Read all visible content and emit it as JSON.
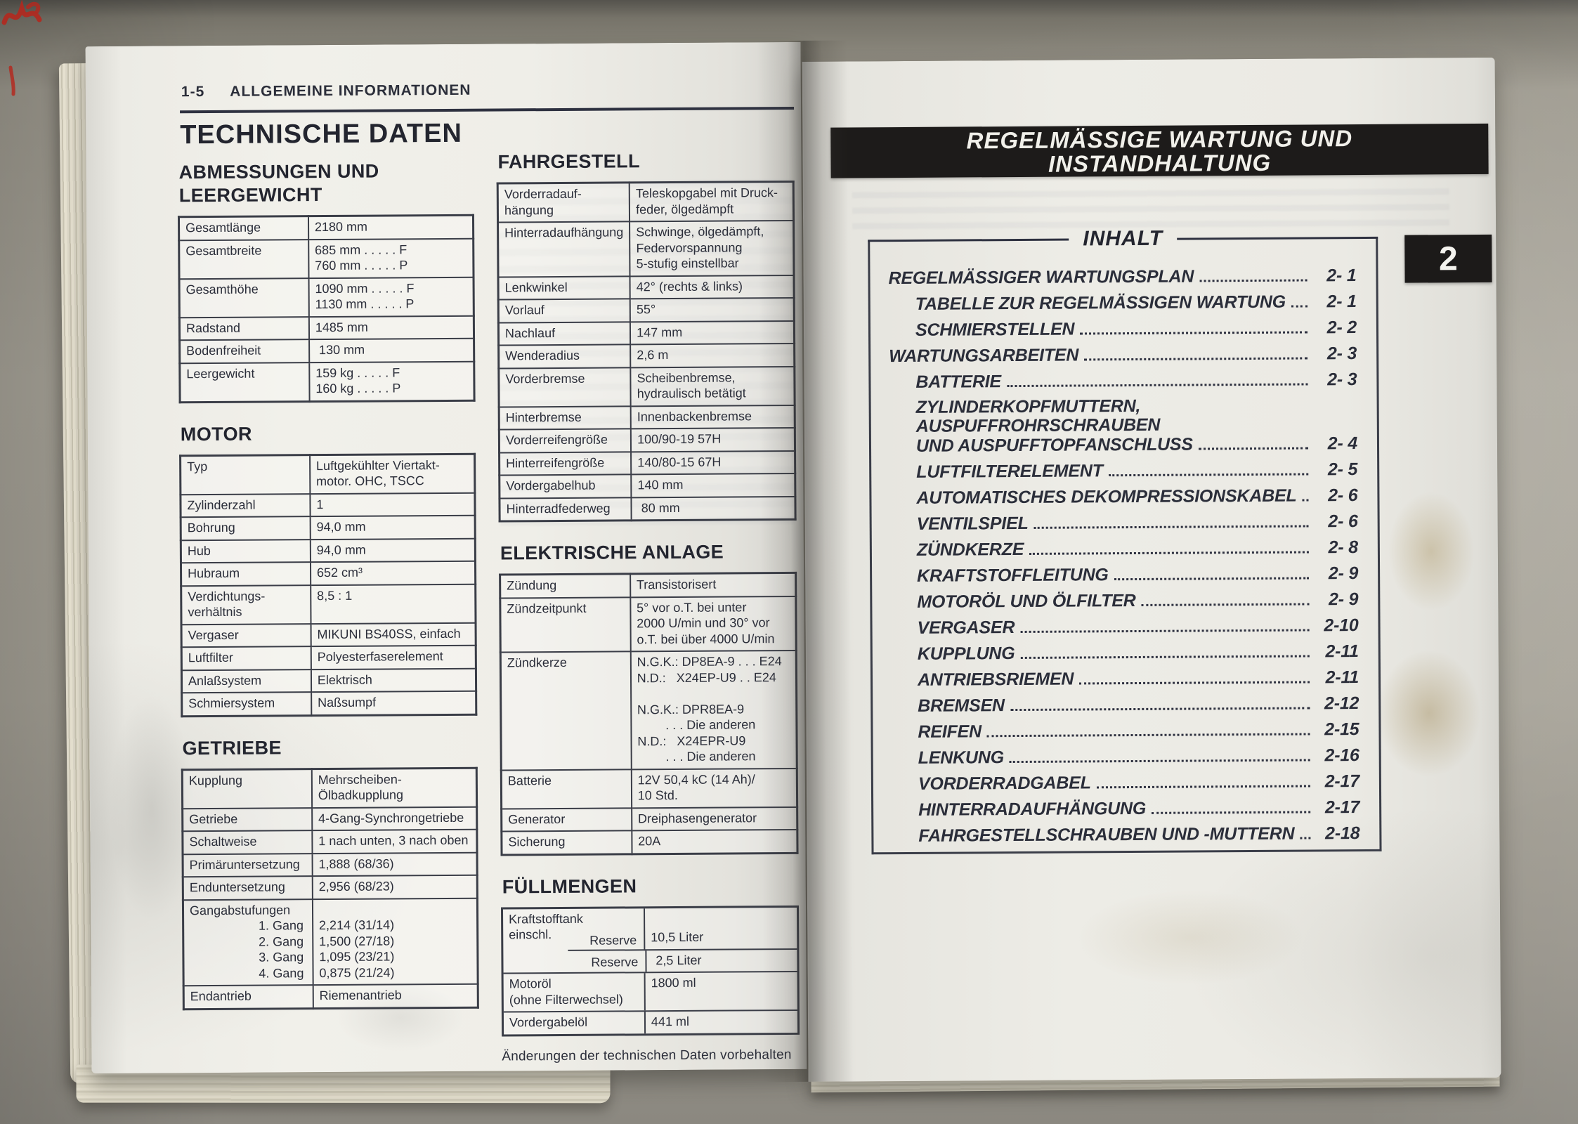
{
  "colors": {
    "ink": "#2b2e3a",
    "paper": "#edebe4",
    "banner_bg": "#1d1b1a",
    "desk": "#a7a398",
    "red_marks": "#b5271d",
    "stain": "#8c7032"
  },
  "left_page": {
    "page_ref": "1-5",
    "chapter": "ALLGEMEINE INFORMATIONEN",
    "title": "TECHNISCHE DATEN",
    "col1": [
      {
        "heading": "ABMESSUNGEN UND\nLEERGEWICHT",
        "rows": [
          {
            "label": "Gesamtlänge",
            "value": "2180 mm"
          },
          {
            "label": "Gesamtbreite",
            "value": "685 mm . . . . . F\n760 mm . . . . . P"
          },
          {
            "label": "Gesamthöhe",
            "value": "1090 mm . . . . . F\n1130 mm . . . . . P"
          },
          {
            "label": "Radstand",
            "value": "1485 mm"
          },
          {
            "label": "Bodenfreiheit",
            "value": " 130 mm"
          },
          {
            "label": "Leergewicht",
            "value": "159 kg . . . . . F\n160 kg . . . . . P"
          }
        ]
      },
      {
        "heading": "MOTOR",
        "rows": [
          {
            "label": "Typ",
            "value": "Luftgekühlter Viertakt-\nmotor. OHC, TSCC"
          },
          {
            "label": "Zylinderzahl",
            "value": "1"
          },
          {
            "label": "Bohrung",
            "value": "94,0 mm"
          },
          {
            "label": "Hub",
            "value": "94,0 mm"
          },
          {
            "label": "Hubraum",
            "value": "652 cm³"
          },
          {
            "label": "Verdichtungs-\nverhältnis",
            "value": "8,5 : 1"
          },
          {
            "label": "Vergaser",
            "value": "MIKUNI BS40SS, einfach"
          },
          {
            "label": "Luftfilter",
            "value": "Polyesterfaserelement"
          },
          {
            "label": "Anlaßsystem",
            "value": "Elektrisch"
          },
          {
            "label": "Schmiersystem",
            "value": "Naßsumpf"
          }
        ]
      },
      {
        "heading": "GETRIEBE",
        "rows": [
          {
            "label": "Kupplung",
            "value": "Mehrscheiben-\nÖlbadkupplung"
          },
          {
            "label": "Getriebe",
            "value": "4-Gang-Synchrongetriebe"
          },
          {
            "label": "Schaltweise",
            "value": "1 nach unten, 3 nach oben"
          },
          {
            "label": "Primäruntersetzung",
            "value": "1,888 (68/36)"
          },
          {
            "label": "Enduntersetzung",
            "value": "2,956 (68/23)"
          },
          {
            "label": "Gangabstufungen",
            "subs": [
              "1. Gang",
              "2. Gang",
              "3. Gang",
              "4. Gang"
            ],
            "value": "\n2,214 (31/14)\n1,500 (27/18)\n1,095 (23/21)\n0,875 (21/24)"
          },
          {
            "label": "Endantrieb",
            "value": "Riemenantrieb"
          }
        ]
      }
    ],
    "col2": [
      {
        "heading": "FAHRGESTELL",
        "rows": [
          {
            "label": "Vorderradauf-\nhängung",
            "value": "Teleskopgabel mit Druck-\nfeder, ölgedämpft"
          },
          {
            "label": "Hinterradaufhängung",
            "value": "Schwinge, ölgedämpft,\nFedervorspannung\n5-stufig einstellbar"
          },
          {
            "label": "Lenkwinkel",
            "value": "42° (rechts & links)"
          },
          {
            "label": "Vorlauf",
            "value": "55°"
          },
          {
            "label": "Nachlauf",
            "value": "147 mm"
          },
          {
            "label": "Wenderadius",
            "value": "2,6 m"
          },
          {
            "label": "Vorderbremse",
            "value": "Scheibenbremse,\nhydraulisch betätigt"
          },
          {
            "label": "Hinterbremse",
            "value": "Innenbackenbremse"
          },
          {
            "label": "Vorderreifengröße",
            "value": "100/90-19 57H"
          },
          {
            "label": "Hinterreifengröße",
            "value": "140/80-15 67H"
          },
          {
            "label": "Vordergabelhub",
            "value": "140 mm"
          },
          {
            "label": "Hinterradfederweg",
            "value": " 80 mm"
          }
        ]
      },
      {
        "heading": "ELEKTRISCHE ANLAGE",
        "rows": [
          {
            "label": "Zündung",
            "value": "Transistorisert"
          },
          {
            "label": "Zündzeitpunkt",
            "value": "5° vor o.T. bei unter\n2000 U/min und 30° vor\no.T. bei über 4000 U/min"
          },
          {
            "label": "Zündkerze",
            "value": "N.G.K.: DP8EA-9 . . . E24\nN.D.:   X24EP-U9 . . E24\n\nN.G.K.: DPR8EA-9\n        . . . Die anderen\nN.D.:   X24EPR-U9\n        . . . Die anderen"
          },
          {
            "label": "Batterie",
            "value": "12V 50,4 kC (14 Ah)/\n10 Std."
          },
          {
            "label": "Generator",
            "value": "Dreiphasengenerator"
          },
          {
            "label": "Sicherung",
            "value": "20A"
          }
        ]
      },
      {
        "heading": "FÜLLMENGEN",
        "type": "fuel",
        "rows": [
          {
            "label": "Kraftstofftank\neinschl.",
            "sub": "Reserve",
            "value": "10,5 Liter"
          },
          {
            "sub": "Reserve",
            "value": " 2,5 Liter"
          },
          {
            "label": "Motoröl\n(ohne Filterwechsel)",
            "value": "1800 ml"
          },
          {
            "label": "Vordergabelöl",
            "value": "441 ml"
          }
        ]
      }
    ],
    "footnote": "Änderungen der technischen Daten vorbehalten"
  },
  "right_page": {
    "banner_lines": [
      "REGELMÄSSIGE WARTUNG UND",
      "INSTANDHALTUNG"
    ],
    "tab_number": "2",
    "toc_title": "INHALT",
    "toc": [
      {
        "label": "REGELMÄSSIGER WARTUNGSPLAN",
        "page": "2- 1",
        "indent": 0
      },
      {
        "label": "TABELLE ZUR REGELMÄSSIGEN WARTUNG",
        "page": "2- 1",
        "indent": 1
      },
      {
        "label": "SCHMIERSTELLEN",
        "page": "2- 2",
        "indent": 1
      },
      {
        "label": "WARTUNGSARBEITEN",
        "page": "2- 3",
        "indent": 0
      },
      {
        "label": "BATTERIE",
        "page": "2- 3",
        "indent": 1
      },
      {
        "label": "ZYLINDERKOPFMUTTERN, AUSPUFFROHRSCHRAUBEN",
        "label2": "UND AUSPUFFTOPFANSCHLUSS",
        "page": "2- 4",
        "indent": 1
      },
      {
        "label": "LUFTFILTERELEMENT",
        "page": "2- 5",
        "indent": 1
      },
      {
        "label": "AUTOMATISCHES DEKOMPRESSIONSKABEL",
        "page": "2- 6",
        "indent": 1
      },
      {
        "label": "VENTILSPIEL",
        "page": "2- 6",
        "indent": 1
      },
      {
        "label": "ZÜNDKERZE",
        "page": "2- 8",
        "indent": 1
      },
      {
        "label": "KRAFTSTOFFLEITUNG",
        "page": "2- 9",
        "indent": 1
      },
      {
        "label": "MOTORÖL UND ÖLFILTER",
        "page": "2- 9",
        "indent": 1
      },
      {
        "label": "VERGASER",
        "page": "2-10",
        "indent": 1
      },
      {
        "label": "KUPPLUNG",
        "page": "2-11",
        "indent": 1
      },
      {
        "label": "ANTRIEBSRIEMEN",
        "page": "2-11",
        "indent": 1
      },
      {
        "label": "BREMSEN",
        "page": "2-12",
        "indent": 1
      },
      {
        "label": "REIFEN",
        "page": "2-15",
        "indent": 1
      },
      {
        "label": "LENKUNG",
        "page": "2-16",
        "indent": 1
      },
      {
        "label": "VORDERRADGABEL",
        "page": "2-17",
        "indent": 1
      },
      {
        "label": "HINTERRADAUFHÄNGUNG",
        "page": "2-17",
        "indent": 1
      },
      {
        "label": "FAHRGESTELLSCHRAUBEN UND -MUTTERN",
        "page": "2-18",
        "indent": 1
      }
    ]
  }
}
